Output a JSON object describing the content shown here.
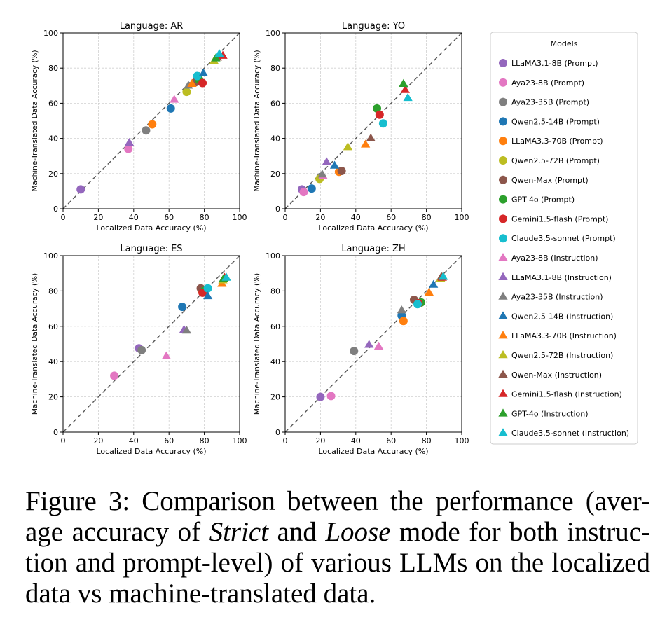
{
  "chart_data": [
    {
      "type": "scatter",
      "title": "Language: AR",
      "xlabel": "Localized Data Accuracy (%)",
      "ylabel": "Machine-Translated Data Accuracy (%)",
      "xlim": [
        0,
        100
      ],
      "ylim": [
        0,
        100
      ],
      "xticks": [
        "0",
        "20",
        "40",
        "60",
        "80",
        "100"
      ],
      "yticks": [
        "0",
        "20",
        "40",
        "60",
        "80",
        "100"
      ],
      "grid": true,
      "diagonal": true,
      "points": [
        {
          "model": "LLaMA3.1-8B (Prompt)",
          "x": 10,
          "y": 11
        },
        {
          "model": "Aya23-8B (Prompt)",
          "x": 37,
          "y": 34
        },
        {
          "model": "Aya23-35B (Prompt)",
          "x": 47,
          "y": 44.5
        },
        {
          "model": "Qwen2.5-14B (Prompt)",
          "x": 61,
          "y": 57
        },
        {
          "model": "LLaMA3.3-70B (Prompt)",
          "x": 50.5,
          "y": 48
        },
        {
          "model": "Qwen2.5-72B (Prompt)",
          "x": 70,
          "y": 66.5
        },
        {
          "model": "Qwen-Max (Prompt)",
          "x": 75,
          "y": 72
        },
        {
          "model": "GPT-4o (Prompt)",
          "x": 77,
          "y": 73.5
        },
        {
          "model": "Gemini1.5-flash (Prompt)",
          "x": 79,
          "y": 71.5
        },
        {
          "model": "Claude3.5-sonnet (Prompt)",
          "x": 76,
          "y": 75.5
        },
        {
          "model": "Aya23-8B (Instruction)",
          "x": 63,
          "y": 62
        },
        {
          "model": "LLaMA3.1-8B (Instruction)",
          "x": 37.5,
          "y": 37.5
        },
        {
          "model": "Aya23-35B (Instruction)",
          "x": 71,
          "y": 70
        },
        {
          "model": "Qwen2.5-14B (Instruction)",
          "x": 79.5,
          "y": 77
        },
        {
          "model": "LLaMA3.3-70B (Instruction)",
          "x": 73,
          "y": 71
        },
        {
          "model": "Qwen2.5-72B (Instruction)",
          "x": 85.5,
          "y": 84
        },
        {
          "model": "Qwen-Max (Instruction)",
          "x": 87.5,
          "y": 86
        },
        {
          "model": "Gemini1.5-flash (Instruction)",
          "x": 90.5,
          "y": 87
        },
        {
          "model": "GPT-4o (Instruction)",
          "x": 86.5,
          "y": 85.5
        },
        {
          "model": "Claude3.5-sonnet (Instruction)",
          "x": 88.5,
          "y": 88
        }
      ]
    },
    {
      "type": "scatter",
      "title": "Language: YO",
      "xlabel": "Localized Data Accuracy (%)",
      "ylabel": "Machine-Translated Data Accuracy (%)",
      "xlim": [
        0,
        100
      ],
      "ylim": [
        0,
        100
      ],
      "xticks": [
        "0",
        "20",
        "40",
        "60",
        "80",
        "100"
      ],
      "yticks": [
        "0",
        "20",
        "40",
        "60",
        "80",
        "100"
      ],
      "grid": true,
      "diagonal": true,
      "points": [
        {
          "model": "LLaMA3.1-8B (Prompt)",
          "x": 9.5,
          "y": 11
        },
        {
          "model": "Aya23-8B (Prompt)",
          "x": 10.5,
          "y": 9.5
        },
        {
          "model": "Aya23-35B (Prompt)",
          "x": 20,
          "y": 18
        },
        {
          "model": "Qwen2.5-14B (Prompt)",
          "x": 15,
          "y": 11.5
        },
        {
          "model": "LLaMA3.3-70B (Prompt)",
          "x": 30.5,
          "y": 21
        },
        {
          "model": "Qwen2.5-72B (Prompt)",
          "x": 19.5,
          "y": 17
        },
        {
          "model": "Qwen-Max (Prompt)",
          "x": 32,
          "y": 21.5
        },
        {
          "model": "GPT-4o (Prompt)",
          "x": 52,
          "y": 57
        },
        {
          "model": "Gemini1.5-flash (Prompt)",
          "x": 53.5,
          "y": 53.5
        },
        {
          "model": "Claude3.5-sonnet (Prompt)",
          "x": 55.5,
          "y": 48.5
        },
        {
          "model": "Aya23-8B (Instruction)",
          "x": 21.5,
          "y": 18.5
        },
        {
          "model": "LLaMA3.1-8B (Instruction)",
          "x": 23.5,
          "y": 26.5
        },
        {
          "model": "Aya23-35B (Instruction)",
          "x": 21,
          "y": 19.5
        },
        {
          "model": "Qwen2.5-14B (Instruction)",
          "x": 28,
          "y": 24.5
        },
        {
          "model": "LLaMA3.3-70B (Instruction)",
          "x": 45.5,
          "y": 36.5
        },
        {
          "model": "Qwen2.5-72B (Instruction)",
          "x": 35.5,
          "y": 35
        },
        {
          "model": "Qwen-Max (Instruction)",
          "x": 48.5,
          "y": 40
        },
        {
          "model": "Gemini1.5-flash (Instruction)",
          "x": 68,
          "y": 67.5
        },
        {
          "model": "GPT-4o (Instruction)",
          "x": 67,
          "y": 71
        },
        {
          "model": "Claude3.5-sonnet (Instruction)",
          "x": 69.5,
          "y": 63
        }
      ]
    },
    {
      "type": "scatter",
      "title": "Language: ES",
      "xlabel": "Localized Data Accuracy (%)",
      "ylabel": "Machine-Translated Data Accuracy (%)",
      "xlim": [
        0,
        100
      ],
      "ylim": [
        0,
        100
      ],
      "xticks": [
        "0",
        "20",
        "40",
        "60",
        "80",
        "100"
      ],
      "yticks": [
        "0",
        "20",
        "40",
        "60",
        "80",
        "100"
      ],
      "grid": true,
      "diagonal": true,
      "points": [
        {
          "model": "LLaMA3.1-8B (Prompt)",
          "x": 43,
          "y": 47.5
        },
        {
          "model": "Aya23-8B (Prompt)",
          "x": 29,
          "y": 32
        },
        {
          "model": "Aya23-35B (Prompt)",
          "x": 44.5,
          "y": 46.5
        },
        {
          "model": "Qwen2.5-14B (Prompt)",
          "x": 67.5,
          "y": 71
        },
        {
          "model": "LLaMA3.3-70B (Prompt)",
          "x": 78.5,
          "y": 80
        },
        {
          "model": "Qwen2.5-72B (Prompt)",
          "x": 79,
          "y": 79.5
        },
        {
          "model": "Qwen-Max (Prompt)",
          "x": 78,
          "y": 81.5
        },
        {
          "model": "GPT-4o (Prompt)",
          "x": 80,
          "y": 80
        },
        {
          "model": "Gemini1.5-flash (Prompt)",
          "x": 79,
          "y": 79
        },
        {
          "model": "Claude3.5-sonnet (Prompt)",
          "x": 82,
          "y": 81.5
        },
        {
          "model": "Aya23-8B (Instruction)",
          "x": 58.5,
          "y": 43
        },
        {
          "model": "LLaMA3.1-8B (Instruction)",
          "x": 68.5,
          "y": 58
        },
        {
          "model": "Aya23-35B (Instruction)",
          "x": 70,
          "y": 57.5
        },
        {
          "model": "Qwen2.5-14B (Instruction)",
          "x": 82,
          "y": 77
        },
        {
          "model": "LLaMA3.3-70B (Instruction)",
          "x": 90,
          "y": 84
        },
        {
          "model": "Qwen2.5-72B (Instruction)",
          "x": 90.5,
          "y": 86
        },
        {
          "model": "Qwen-Max (Instruction)",
          "x": 91,
          "y": 87
        },
        {
          "model": "Gemini1.5-flash (Instruction)",
          "x": 91.5,
          "y": 87.5
        },
        {
          "model": "GPT-4o (Instruction)",
          "x": 91,
          "y": 87
        },
        {
          "model": "Claude3.5-sonnet (Instruction)",
          "x": 92.5,
          "y": 87.5
        }
      ]
    },
    {
      "type": "scatter",
      "title": "Language: ZH",
      "xlabel": "Localized Data Accuracy (%)",
      "ylabel": "Machine-Translated Data Accuracy (%)",
      "xlim": [
        0,
        100
      ],
      "ylim": [
        0,
        100
      ],
      "xticks": [
        "0",
        "20",
        "40",
        "60",
        "80",
        "100"
      ],
      "yticks": [
        "0",
        "20",
        "40",
        "60",
        "80",
        "100"
      ],
      "grid": true,
      "diagonal": true,
      "points": [
        {
          "model": "LLaMA3.1-8B (Prompt)",
          "x": 20,
          "y": 20
        },
        {
          "model": "Aya23-8B (Prompt)",
          "x": 26,
          "y": 20.5
        },
        {
          "model": "Aya23-35B (Prompt)",
          "x": 39,
          "y": 46
        },
        {
          "model": "Qwen2.5-14B (Prompt)",
          "x": 66,
          "y": 66
        },
        {
          "model": "LLaMA3.3-70B (Prompt)",
          "x": 67,
          "y": 63
        },
        {
          "model": "Qwen2.5-72B (Prompt)",
          "x": 76,
          "y": 73
        },
        {
          "model": "Qwen-Max (Prompt)",
          "x": 73,
          "y": 75
        },
        {
          "model": "GPT-4o (Prompt)",
          "x": 77,
          "y": 73.5
        },
        {
          "model": "Gemini1.5-flash (Prompt)",
          "x": 75.5,
          "y": 73
        },
        {
          "model": "Claude3.5-sonnet (Prompt)",
          "x": 75,
          "y": 72.5
        },
        {
          "model": "Aya23-8B (Instruction)",
          "x": 53,
          "y": 48.5
        },
        {
          "model": "LLaMA3.1-8B (Instruction)",
          "x": 47.5,
          "y": 49.5
        },
        {
          "model": "Aya23-35B (Instruction)",
          "x": 66,
          "y": 69
        },
        {
          "model": "Qwen2.5-14B (Instruction)",
          "x": 84,
          "y": 83.5
        },
        {
          "model": "LLaMA3.3-70B (Instruction)",
          "x": 81.5,
          "y": 79
        },
        {
          "model": "Qwen2.5-72B (Instruction)",
          "x": 88,
          "y": 87
        },
        {
          "model": "Qwen-Max (Instruction)",
          "x": 88.5,
          "y": 88
        },
        {
          "model": "Gemini1.5-flash (Instruction)",
          "x": 89,
          "y": 87.5
        },
        {
          "model": "GPT-4o (Instruction)",
          "x": 89.5,
          "y": 88
        },
        {
          "model": "Claude3.5-sonnet (Instruction)",
          "x": 89.5,
          "y": 88
        }
      ]
    }
  ],
  "legend": {
    "title": "Models",
    "placement": "right",
    "entries": [
      {
        "label": "LLaMA3.1-8B (Prompt)",
        "marker": "circle",
        "color": "#9467bd"
      },
      {
        "label": "Aya23-8B (Prompt)",
        "marker": "circle",
        "color": "#e377c2"
      },
      {
        "label": "Aya23-35B (Prompt)",
        "marker": "circle",
        "color": "#7f7f7f"
      },
      {
        "label": "Qwen2.5-14B (Prompt)",
        "marker": "circle",
        "color": "#1f77b4"
      },
      {
        "label": "LLaMA3.3-70B (Prompt)",
        "marker": "circle",
        "color": "#ff7f0e"
      },
      {
        "label": "Qwen2.5-72B (Prompt)",
        "marker": "circle",
        "color": "#bcbd22"
      },
      {
        "label": "Qwen-Max (Prompt)",
        "marker": "circle",
        "color": "#8c564b"
      },
      {
        "label": "GPT-4o (Prompt)",
        "marker": "circle",
        "color": "#2ca02c"
      },
      {
        "label": "Gemini1.5-flash (Prompt)",
        "marker": "circle",
        "color": "#d62728"
      },
      {
        "label": "Claude3.5-sonnet (Prompt)",
        "marker": "circle",
        "color": "#17becf"
      },
      {
        "label": "Aya23-8B (Instruction)",
        "marker": "triangle",
        "color": "#e377c2"
      },
      {
        "label": "LLaMA3.1-8B (Instruction)",
        "marker": "triangle",
        "color": "#9467bd"
      },
      {
        "label": "Aya23-35B (Instruction)",
        "marker": "triangle",
        "color": "#7f7f7f"
      },
      {
        "label": "Qwen2.5-14B (Instruction)",
        "marker": "triangle",
        "color": "#1f77b4"
      },
      {
        "label": "LLaMA3.3-70B (Instruction)",
        "marker": "triangle",
        "color": "#ff7f0e"
      },
      {
        "label": "Qwen2.5-72B (Instruction)",
        "marker": "triangle",
        "color": "#bcbd22"
      },
      {
        "label": "Qwen-Max (Instruction)",
        "marker": "triangle",
        "color": "#8c564b"
      },
      {
        "label": "Gemini1.5-flash (Instruction)",
        "marker": "triangle",
        "color": "#d62728"
      },
      {
        "label": "GPT-4o (Instruction)",
        "marker": "triangle",
        "color": "#2ca02c"
      },
      {
        "label": "Claude3.5-sonnet (Instruction)",
        "marker": "triangle",
        "color": "#17becf"
      }
    ]
  },
  "caption": {
    "part1": "Figure 3: Comparison between the performance (aver-age accuracy of ",
    "em1": "Strict",
    "part2": " and ",
    "em2": "Loose",
    "part3": " mode for both instruc-tion and prompt-level) of various LLMs on the localized data vs machine-translated data."
  }
}
